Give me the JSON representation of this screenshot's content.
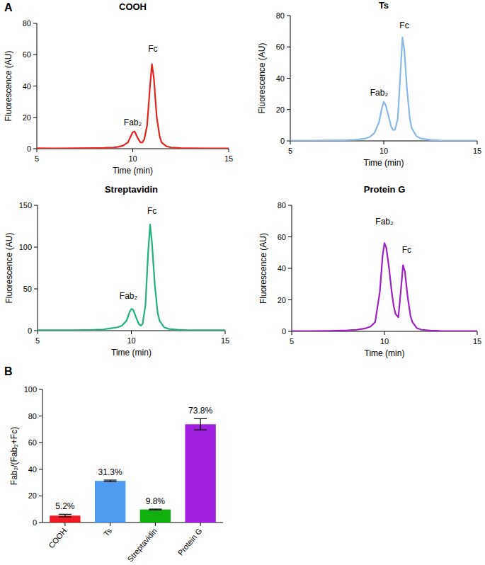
{
  "panels": [
    "A",
    "B"
  ],
  "chart_data": [
    {
      "type": "line",
      "title": "COOH",
      "x_label": "Time (min)",
      "y_label": "Fluorescence (AU)",
      "x": [
        5,
        6,
        7,
        8,
        8.5,
        9,
        9.25,
        9.5,
        9.75,
        9.9,
        10,
        10.1,
        10.25,
        10.4,
        10.5,
        10.6,
        10.75,
        10.9,
        11,
        11.1,
        11.25,
        11.4,
        11.5,
        11.75,
        12,
        12.5,
        13,
        14,
        15
      ],
      "series": [
        {
          "name": "COOH",
          "color": "#e8231f",
          "values": [
            0.3,
            0.2,
            0.3,
            0.4,
            0.5,
            0.8,
            1.2,
            2,
            4,
            8,
            10.5,
            11,
            7,
            4,
            4,
            6,
            15,
            40,
            54,
            45,
            20,
            8,
            4,
            1.5,
            0.8,
            0.4,
            0.3,
            0.2,
            0.2
          ]
        }
      ],
      "xlim": [
        5,
        15
      ],
      "xticks": [
        5,
        10,
        15
      ],
      "ylim": [
        0,
        80
      ],
      "yticks": [
        0,
        20,
        40,
        60,
        80
      ],
      "annotations": [
        {
          "text": "Fab₂",
          "x": 10,
          "y": 15
        },
        {
          "text": "Fc",
          "x": 11.05,
          "y": 62
        }
      ]
    },
    {
      "type": "line",
      "title": "Ts",
      "x_label": "Time (min)",
      "y_label": "Fluorescence (AU)",
      "x": [
        5,
        6,
        7,
        8,
        8.5,
        9,
        9.25,
        9.5,
        9.75,
        9.9,
        10,
        10.1,
        10.25,
        10.4,
        10.5,
        10.6,
        10.75,
        10.9,
        11,
        11.1,
        11.25,
        11.4,
        11.5,
        11.75,
        12,
        12.5,
        13,
        14,
        15
      ],
      "series": [
        {
          "name": "Ts",
          "color": "#8ab8e8",
          "values": [
            0.2,
            0.2,
            0.3,
            0.5,
            0.8,
            1.5,
            2.5,
            5,
            12,
            21,
            25,
            23,
            16,
            9,
            7,
            7,
            14,
            45,
            66,
            58,
            32,
            14,
            8,
            3,
            1.5,
            0.6,
            0.3,
            0.2,
            0.2
          ]
        }
      ],
      "xlim": [
        5,
        15
      ],
      "xticks": [
        5,
        10,
        15
      ],
      "ylim": [
        0,
        80
      ],
      "yticks": [
        0,
        20,
        40,
        60,
        80
      ],
      "annotations": [
        {
          "text": "Fab₂",
          "x": 9.75,
          "y": 29
        },
        {
          "text": "Fc",
          "x": 11.1,
          "y": 72
        }
      ]
    },
    {
      "type": "line",
      "title": "Streptavidin",
      "x_label": "Time (min)",
      "y_label": "Fluorescence (AU)",
      "x": [
        5,
        6,
        7,
        8,
        8.5,
        9,
        9.25,
        9.5,
        9.75,
        9.9,
        10,
        10.1,
        10.25,
        10.4,
        10.5,
        10.6,
        10.75,
        10.9,
        11,
        11.1,
        11.25,
        11.4,
        11.5,
        11.75,
        12,
        12.5,
        13,
        14,
        15
      ],
      "series": [
        {
          "name": "Streptavidin",
          "color": "#22b07d",
          "values": [
            0.5,
            0.5,
            0.6,
            1,
            1.5,
            3,
            4,
            6,
            12,
            22,
            26,
            25,
            16,
            8,
            6,
            8,
            30,
            95,
            127,
            105,
            55,
            22,
            12,
            4,
            2,
            1,
            0.6,
            0.5,
            0.5
          ]
        }
      ],
      "xlim": [
        5,
        15
      ],
      "xticks": [
        5,
        10,
        15
      ],
      "ylim": [
        0,
        150
      ],
      "yticks": [
        0,
        50,
        100,
        150
      ],
      "annotations": [
        {
          "text": "Fab₂",
          "x": 9.85,
          "y": 38
        },
        {
          "text": "Fc",
          "x": 11.1,
          "y": 140
        }
      ]
    },
    {
      "type": "line",
      "title": "Protein G",
      "x_label": "Time (min)",
      "y_label": "Fluorescence (AU)",
      "x": [
        5,
        6,
        7,
        8,
        8.5,
        9,
        9.25,
        9.5,
        9.75,
        9.9,
        10,
        10.1,
        10.25,
        10.4,
        10.5,
        10.6,
        10.75,
        10.9,
        11,
        11.1,
        11.25,
        11.4,
        11.5,
        11.75,
        12,
        12.5,
        13,
        14,
        15
      ],
      "series": [
        {
          "name": "Protein G",
          "color": "#a020c8",
          "values": [
            0.2,
            0.2,
            0.3,
            0.6,
            1,
            2,
            3,
            6,
            25,
            48,
            56,
            53,
            40,
            24,
            16,
            11,
            9,
            28,
            42,
            38,
            22,
            10,
            6,
            2,
            1,
            0.5,
            0.3,
            0.2,
            0.2
          ]
        }
      ],
      "xlim": [
        5,
        15
      ],
      "xticks": [
        5,
        10,
        15
      ],
      "ylim": [
        0,
        80
      ],
      "yticks": [
        0,
        20,
        40,
        60,
        80
      ],
      "annotations": [
        {
          "text": "Fab₂",
          "x": 10,
          "y": 68
        },
        {
          "text": "Fc",
          "x": 11.2,
          "y": 50
        }
      ]
    },
    {
      "type": "bar",
      "y_label": "Fab₂/(Fab₂+Fc)",
      "categories": [
        "COOH",
        "Ts",
        "Streptavidin",
        "Protein G"
      ],
      "values": [
        5.2,
        31.3,
        9.8,
        73.8
      ],
      "errors": [
        1.0,
        0.6,
        0.3,
        4.2
      ],
      "value_labels": [
        "5.2%",
        "31.3%",
        "9.8%",
        "73.8%"
      ],
      "colors": [
        "#ee1c25",
        "#4f9bef",
        "#10b010",
        "#a020e0"
      ],
      "data_labels": true,
      "ylim": [
        0,
        100
      ],
      "yticks": [
        0,
        20,
        40,
        60,
        80,
        100
      ]
    }
  ]
}
